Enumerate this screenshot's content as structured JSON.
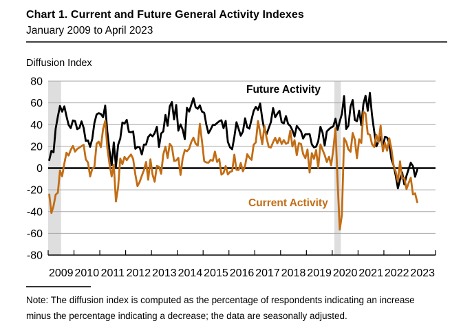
{
  "header": {
    "title": "Chart 1. Current and Future General Activity Indexes",
    "subtitle": "January 2009 to April 2023"
  },
  "axis_label": "Diffusion Index",
  "annotations": {
    "future": "Future Activity",
    "current": "Current Activity"
  },
  "note": {
    "line1": "Note: The diffusion index is computed as the percentage of respondents indicating an increase",
    "line2": "minus the percentage indicating a decrease; the data are seasonally adjusted."
  },
  "colors": {
    "future_line": "#000000",
    "current_line": "#C26D15",
    "recession_band": "#DEDEDE",
    "gridline": "#A6A6A6",
    "zero_line": "#000000",
    "axis_line": "#000000"
  },
  "chart_data": {
    "type": "line",
    "title": "Chart 1. Current and Future General Activity Indexes",
    "subtitle": "January 2009 to April 2023",
    "ylabel": "Diffusion Index",
    "x_start": "2009-01",
    "x_end": "2023-04",
    "frequency": "monthly",
    "ylim": [
      -80,
      80
    ],
    "yticks": [
      80,
      60,
      40,
      20,
      0,
      -20,
      -40,
      -60,
      -80
    ],
    "x_tick_labels": [
      "2009",
      "2010",
      "2011",
      "2012",
      "2013",
      "2014",
      "2015",
      "2016",
      "2017",
      "2018",
      "2019",
      "2020",
      "2021",
      "2022",
      "2023"
    ],
    "grid": "horizontal",
    "legend_position": "inline-annotations",
    "recessions": [
      {
        "start": "2009-01",
        "end": "2009-06"
      },
      {
        "start": "2020-02",
        "end": "2020-04"
      }
    ],
    "series": [
      {
        "name": "Future Activity",
        "color": "#000000",
        "values": [
          7.4,
          15.9,
          14.5,
          36.2,
          47.5,
          57.1,
          51.9,
          56.8,
          47.8,
          39.8,
          36.8,
          43.8,
          43.3,
          35.8,
          36.9,
          43.0,
          37.0,
          25.0,
          25.4,
          19.6,
          27.0,
          41.4,
          49.3,
          50.5,
          49.8,
          46.8,
          57.5,
          33.6,
          16.6,
          2.5,
          23.7,
          1.4,
          21.4,
          27.2,
          41.9,
          40.9,
          44.4,
          33.3,
          32.9,
          33.8,
          17.7,
          19.5,
          19.3,
          12.5,
          21.6,
          21.6,
          28.6,
          30.9,
          29.2,
          32.1,
          38.0,
          19.5,
          31.9,
          33.7,
          48.9,
          38.9,
          56.8,
          60.8,
          44.8,
          58.1,
          34.4,
          40.2,
          35.4,
          26.6,
          55.4,
          52.0,
          58.1,
          64.4,
          56.0,
          54.5,
          57.7,
          51.9,
          50.9,
          40.0,
          32.0,
          35.5,
          39.7,
          39.7,
          41.5,
          43.1,
          44.0,
          36.7,
          43.4,
          24.1,
          19.1,
          17.3,
          28.8,
          42.2,
          36.1,
          29.8,
          33.7,
          45.8,
          37.5,
          36.3,
          44.7,
          52.6,
          56.3,
          53.5,
          59.5,
          45.4,
          34.8,
          31.3,
          36.9,
          42.3,
          55.2,
          46.8,
          50.1,
          52.7,
          42.2,
          41.2,
          47.9,
          40.7,
          38.7,
          34.8,
          29.0,
          38.8,
          36.3,
          33.8,
          27.2,
          31.1,
          31.2,
          31.3,
          21.8,
          19.1,
          19.7,
          24.6,
          38.0,
          32.6,
          20.8,
          33.8,
          35.8,
          37.4,
          38.4,
          45.4,
          35.2,
          43.0,
          49.7,
          66.3,
          36.0,
          38.8,
          56.6,
          62.7,
          44.3,
          43.1,
          52.8,
          39.5,
          59.1,
          66.6,
          52.7,
          69.2,
          48.6,
          33.7,
          20.0,
          24.2,
          28.5,
          19.1,
          28.7,
          28.1,
          22.7,
          8.2,
          2.5,
          -6.8,
          -18.6,
          -10.6,
          -3.9,
          -14.9,
          -7.1,
          -0.9,
          4.9,
          1.7,
          -8.0,
          -1.5
        ]
      },
      {
        "name": "Current Activity",
        "color": "#C26D15",
        "values": [
          -24.3,
          -41.3,
          -35.0,
          -24.4,
          -22.6,
          -2.2,
          -7.5,
          4.2,
          14.1,
          11.5,
          16.7,
          20.4,
          15.2,
          17.6,
          18.9,
          20.2,
          21.4,
          8.0,
          5.1,
          -7.7,
          -0.7,
          1.0,
          22.5,
          24.3,
          19.3,
          35.9,
          43.4,
          18.5,
          3.9,
          -7.7,
          3.2,
          -30.7,
          -17.5,
          8.7,
          3.6,
          10.3,
          7.3,
          10.2,
          12.5,
          8.5,
          -5.8,
          -16.6,
          -12.9,
          -7.1,
          -1.9,
          5.7,
          -10.7,
          8.1,
          -5.8,
          -12.5,
          2.0,
          1.3,
          -5.2,
          12.5,
          19.8,
          9.3,
          22.3,
          19.8,
          6.5,
          7.0,
          9.4,
          -6.3,
          9.0,
          16.6,
          15.4,
          17.8,
          23.9,
          28.0,
          22.5,
          20.7,
          40.8,
          24.5,
          6.3,
          5.2,
          5.0,
          7.5,
          6.7,
          15.2,
          5.7,
          8.3,
          -6.0,
          -4.5,
          1.9,
          -5.9,
          -3.5,
          -2.8,
          12.4,
          -1.6,
          -1.8,
          4.7,
          -2.9,
          2.0,
          12.8,
          9.7,
          7.6,
          21.5,
          23.6,
          43.3,
          32.8,
          22.0,
          38.8,
          27.6,
          19.5,
          18.9,
          23.8,
          27.9,
          22.7,
          27.8,
          22.2,
          25.8,
          22.3,
          23.2,
          34.4,
          19.9,
          25.7,
          11.9,
          22.9,
          22.2,
          12.9,
          9.1,
          17.0,
          -4.1,
          13.7,
          8.5,
          16.6,
          0.3,
          21.8,
          16.8,
          12.0,
          5.6,
          10.4,
          2.4,
          17.0,
          36.7,
          -12.7,
          -56.6,
          -43.1,
          27.5,
          24.1,
          17.2,
          15.0,
          32.3,
          26.3,
          9.1,
          26.5,
          23.1,
          51.8,
          50.2,
          31.5,
          30.7,
          21.9,
          19.4,
          30.7,
          23.8,
          39.0,
          15.4,
          23.2,
          16.0,
          27.4,
          17.6,
          2.6,
          -3.3,
          -12.3,
          6.2,
          -9.9,
          -8.7,
          -19.4,
          -13.8,
          -8.9,
          -24.3,
          -23.2,
          -31.3
        ]
      }
    ]
  }
}
